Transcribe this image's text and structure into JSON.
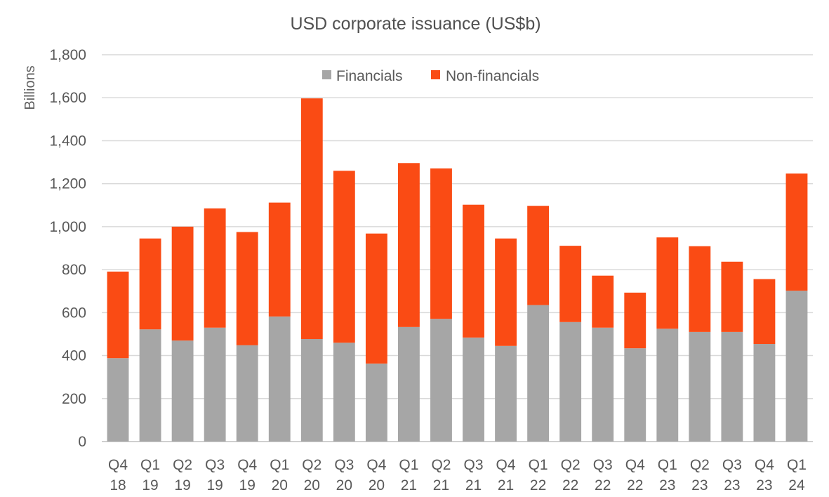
{
  "chart_data": {
    "type": "bar",
    "stacked": true,
    "title": "USD corporate issuance (US$b)",
    "ylabel": "Billions",
    "xlabel": "",
    "ylim": [
      0,
      1800
    ],
    "yticks": [
      0,
      200,
      400,
      600,
      800,
      1000,
      1200,
      1400,
      1600,
      1800
    ],
    "ytick_labels": [
      "0",
      "200",
      "400",
      "600",
      "800",
      "1,000",
      "1,200",
      "1,400",
      "1,600",
      "1,800"
    ],
    "grid": true,
    "legend_position": "top-center",
    "categories": [
      "Q4 18",
      "Q1 19",
      "Q2 19",
      "Q3 19",
      "Q4 19",
      "Q1 20",
      "Q2 20",
      "Q3 20",
      "Q4 20",
      "Q1 21",
      "Q2 21",
      "Q3 21",
      "Q4 21",
      "Q1 22",
      "Q2 22",
      "Q3 22",
      "Q4 22",
      "Q1 23",
      "Q2 23",
      "Q3 23",
      "Q4 23",
      "Q1 24"
    ],
    "series": [
      {
        "name": "Financials",
        "color": "#a6a6a6",
        "values": [
          388,
          522,
          470,
          530,
          448,
          582,
          477,
          460,
          363,
          533,
          571,
          484,
          445,
          635,
          556,
          530,
          434,
          525,
          510,
          510,
          454,
          702
        ]
      },
      {
        "name": "Non-financials",
        "color": "#fa4b14",
        "values": [
          403,
          423,
          530,
          555,
          527,
          530,
          1120,
          800,
          605,
          763,
          700,
          618,
          500,
          462,
          355,
          242,
          259,
          425,
          399,
          327,
          302,
          545
        ]
      }
    ]
  }
}
